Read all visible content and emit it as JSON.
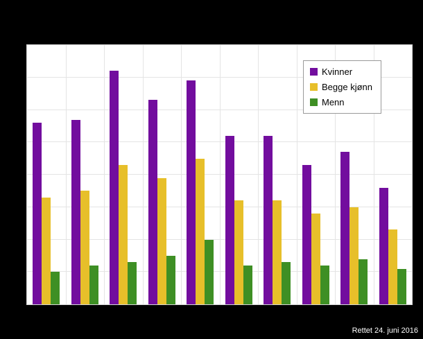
{
  "footer": {
    "note": "Rettet 24. juni 2016"
  },
  "colors": {
    "background": "#000000",
    "plot_background": "#ffffff",
    "gridline": "#e4e4e4"
  },
  "chart_data": {
    "type": "bar",
    "title": "",
    "xlabel": "",
    "ylabel": "",
    "categories": [
      "",
      "",
      "",
      "",
      "",
      "",
      "",
      "",
      "",
      ""
    ],
    "series": [
      {
        "name": "Kvinner",
        "color": "#720d9e",
        "values": [
          5.6,
          5.7,
          7.2,
          6.3,
          6.9,
          5.2,
          5.2,
          4.3,
          4.7,
          3.6
        ]
      },
      {
        "name": "Begge kjønn",
        "color": "#e7bf2a",
        "values": [
          3.3,
          3.5,
          4.3,
          3.9,
          4.5,
          3.2,
          3.2,
          2.8,
          3.0,
          2.3
        ]
      },
      {
        "name": "Menn",
        "color": "#3e8f24",
        "values": [
          1.0,
          1.2,
          1.3,
          1.5,
          2.0,
          1.2,
          1.3,
          1.2,
          1.4,
          1.1
        ]
      }
    ],
    "ylim": [
      0,
      8
    ],
    "grid": {
      "h_step": 1,
      "horizontal": true,
      "vertical": true
    },
    "legend_position": "top-right",
    "tick_labels_visible": false
  }
}
